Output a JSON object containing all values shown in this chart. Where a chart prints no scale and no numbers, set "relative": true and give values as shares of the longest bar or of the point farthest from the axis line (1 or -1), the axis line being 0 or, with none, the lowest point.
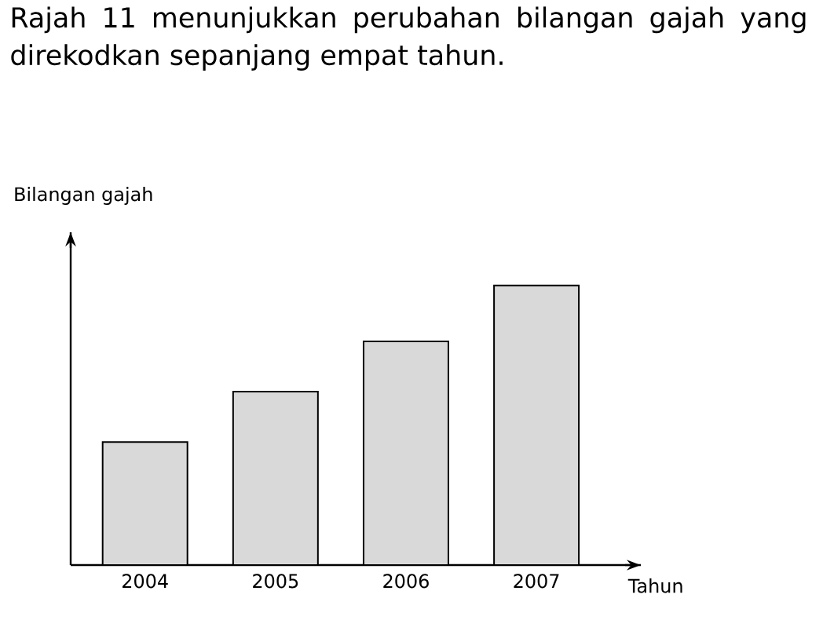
{
  "chart_data": {
    "type": "bar",
    "title": "Rajah 11 menunjukkan perubahan bilangan gajah yang direkodkan sepanjang empat tahun.",
    "ylabel": "Bilangan gajah",
    "xlabel": "Tahun",
    "categories": [
      "2004",
      "2005",
      "2006",
      "2007"
    ],
    "values": [
      0.44,
      0.62,
      0.8,
      1
    ],
    "relative": true,
    "color": "#d9d9d9"
  }
}
